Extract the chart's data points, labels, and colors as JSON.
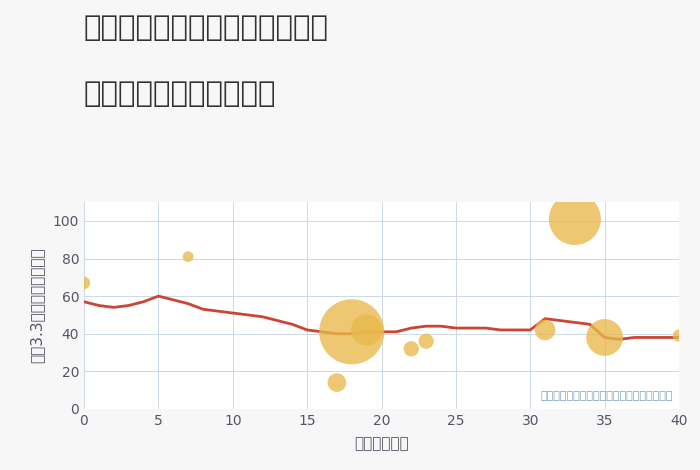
{
  "title_line1": "兵庫県姫路市大津区勘兵衛町の",
  "title_line2": "築年数別中古戸建て価格",
  "xlabel": "築年数（年）",
  "ylabel": "坪（3.3㎡）単価（万円）",
  "background_color": "#f7f7f7",
  "plot_bg_color": "#ffffff",
  "line_color": "#cc4433",
  "line_x": [
    0,
    1,
    2,
    3,
    4,
    5,
    6,
    7,
    8,
    9,
    10,
    11,
    12,
    13,
    14,
    15,
    16,
    17,
    18,
    19,
    20,
    21,
    22,
    23,
    24,
    25,
    26,
    27,
    28,
    29,
    30,
    31,
    32,
    33,
    34,
    35,
    36,
    37,
    38,
    39,
    40
  ],
  "line_y": [
    57,
    55,
    54,
    55,
    57,
    60,
    58,
    56,
    53,
    52,
    51,
    50,
    49,
    47,
    45,
    42,
    41,
    40,
    40,
    41,
    41,
    41,
    43,
    44,
    44,
    43,
    43,
    43,
    42,
    42,
    42,
    48,
    47,
    46,
    45,
    38,
    37,
    38,
    38,
    38,
    38
  ],
  "scatter_x": [
    0,
    7,
    17,
    18,
    19,
    22,
    23,
    31,
    33,
    35,
    40
  ],
  "scatter_y": [
    67,
    81,
    14,
    41,
    42,
    32,
    36,
    42,
    101,
    38,
    39
  ],
  "scatter_size": [
    80,
    60,
    180,
    2200,
    500,
    120,
    120,
    220,
    1400,
    700,
    80
  ],
  "scatter_color": "#e8b84b",
  "scatter_alpha": 0.78,
  "annotation_text": "円の大きさは、取引のあった物件面積を示す",
  "annotation_color": "#7aa0bb",
  "xlim": [
    0,
    40
  ],
  "ylim": [
    0,
    110
  ],
  "xticks": [
    0,
    5,
    10,
    15,
    20,
    25,
    30,
    35,
    40
  ],
  "yticks": [
    0,
    20,
    40,
    60,
    80,
    100
  ],
  "grid_color": "#cdd9e5",
  "title_fontsize": 21,
  "axis_fontsize": 11,
  "tick_fontsize": 10
}
